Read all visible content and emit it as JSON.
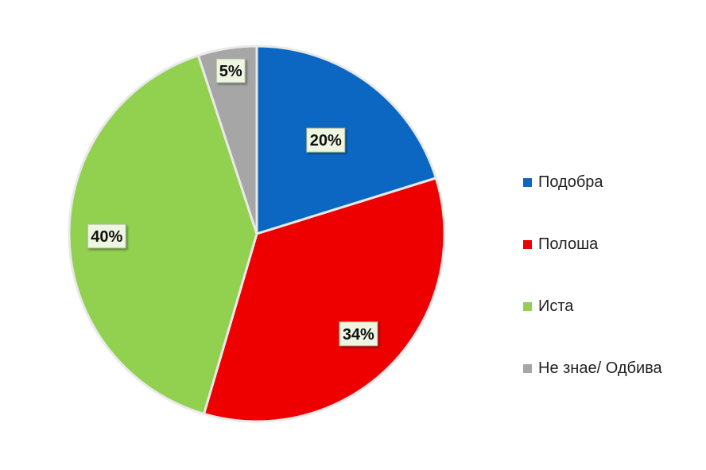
{
  "chart_data": {
    "type": "pie",
    "title": "",
    "labels": [
      "Подобра",
      "Полоша",
      "Иста",
      "Не знае/ Одбива"
    ],
    "values": [
      20,
      34,
      40,
      5
    ],
    "value_labels": [
      "20%",
      "34%",
      "40%",
      "5%"
    ],
    "colors": [
      "#0c67c2",
      "#ee0000",
      "#92d050",
      "#a6a6a6"
    ],
    "start_angle_deg": 0,
    "direction": "clockwise",
    "legend_position": "right"
  }
}
